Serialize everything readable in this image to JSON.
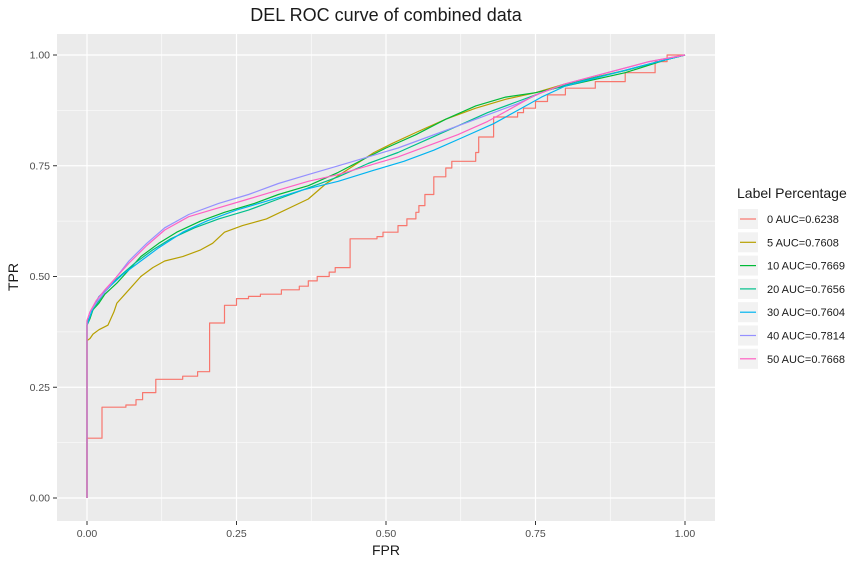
{
  "chart_data": {
    "type": "line",
    "title": "DEL ROC curve of combined data",
    "xlabel": "FPR",
    "ylabel": "TPR",
    "xlim": [
      0,
      1
    ],
    "ylim": [
      0,
      1
    ],
    "x_ticks": [
      "0.00",
      "0.25",
      "0.50",
      "0.75",
      "1.00"
    ],
    "y_ticks": [
      "0.00",
      "0.25",
      "0.50",
      "0.75",
      "1.00"
    ],
    "grid": true,
    "legend": {
      "title": "Label Percentage",
      "position": "right"
    },
    "series": [
      {
        "name": "0 AUC=0.6238",
        "color": "#F8766D",
        "points": [
          [
            0,
            0
          ],
          [
            0,
            0.135
          ],
          [
            0.025,
            0.135
          ],
          [
            0.025,
            0.205
          ],
          [
            0.065,
            0.205
          ],
          [
            0.065,
            0.21
          ],
          [
            0.082,
            0.21
          ],
          [
            0.082,
            0.222
          ],
          [
            0.093,
            0.222
          ],
          [
            0.093,
            0.238
          ],
          [
            0.115,
            0.238
          ],
          [
            0.115,
            0.268
          ],
          [
            0.16,
            0.268
          ],
          [
            0.16,
            0.275
          ],
          [
            0.185,
            0.275
          ],
          [
            0.185,
            0.285
          ],
          [
            0.205,
            0.285
          ],
          [
            0.205,
            0.395
          ],
          [
            0.23,
            0.395
          ],
          [
            0.23,
            0.435
          ],
          [
            0.25,
            0.435
          ],
          [
            0.25,
            0.45
          ],
          [
            0.27,
            0.45
          ],
          [
            0.27,
            0.455
          ],
          [
            0.29,
            0.455
          ],
          [
            0.29,
            0.46
          ],
          [
            0.325,
            0.46
          ],
          [
            0.325,
            0.47
          ],
          [
            0.355,
            0.47
          ],
          [
            0.355,
            0.478
          ],
          [
            0.37,
            0.478
          ],
          [
            0.37,
            0.49
          ],
          [
            0.385,
            0.49
          ],
          [
            0.385,
            0.5
          ],
          [
            0.405,
            0.5
          ],
          [
            0.405,
            0.51
          ],
          [
            0.415,
            0.51
          ],
          [
            0.415,
            0.52
          ],
          [
            0.44,
            0.52
          ],
          [
            0.44,
            0.585
          ],
          [
            0.485,
            0.585
          ],
          [
            0.485,
            0.59
          ],
          [
            0.495,
            0.59
          ],
          [
            0.495,
            0.6
          ],
          [
            0.52,
            0.6
          ],
          [
            0.52,
            0.615
          ],
          [
            0.535,
            0.615
          ],
          [
            0.535,
            0.63
          ],
          [
            0.55,
            0.63
          ],
          [
            0.55,
            0.645
          ],
          [
            0.555,
            0.645
          ],
          [
            0.555,
            0.66
          ],
          [
            0.565,
            0.66
          ],
          [
            0.565,
            0.685
          ],
          [
            0.58,
            0.685
          ],
          [
            0.58,
            0.725
          ],
          [
            0.6,
            0.725
          ],
          [
            0.6,
            0.745
          ],
          [
            0.61,
            0.745
          ],
          [
            0.61,
            0.76
          ],
          [
            0.65,
            0.76
          ],
          [
            0.65,
            0.78
          ],
          [
            0.655,
            0.78
          ],
          [
            0.655,
            0.815
          ],
          [
            0.68,
            0.815
          ],
          [
            0.68,
            0.86
          ],
          [
            0.72,
            0.86
          ],
          [
            0.72,
            0.87
          ],
          [
            0.73,
            0.87
          ],
          [
            0.73,
            0.88
          ],
          [
            0.75,
            0.88
          ],
          [
            0.75,
            0.895
          ],
          [
            0.77,
            0.895
          ],
          [
            0.77,
            0.91
          ],
          [
            0.8,
            0.91
          ],
          [
            0.8,
            0.925
          ],
          [
            0.85,
            0.925
          ],
          [
            0.85,
            0.94
          ],
          [
            0.9,
            0.94
          ],
          [
            0.9,
            0.96
          ],
          [
            0.95,
            0.96
          ],
          [
            0.95,
            0.985
          ],
          [
            0.97,
            0.985
          ],
          [
            0.97,
            1
          ],
          [
            1,
            1
          ]
        ]
      },
      {
        "name": "5 AUC=0.7608",
        "color": "#B79F00",
        "points": [
          [
            0,
            0
          ],
          [
            0,
            0.355
          ],
          [
            0.005,
            0.36
          ],
          [
            0.01,
            0.37
          ],
          [
            0.02,
            0.38
          ],
          [
            0.035,
            0.39
          ],
          [
            0.045,
            0.42
          ],
          [
            0.05,
            0.44
          ],
          [
            0.07,
            0.47
          ],
          [
            0.09,
            0.5
          ],
          [
            0.11,
            0.52
          ],
          [
            0.13,
            0.535
          ],
          [
            0.16,
            0.545
          ],
          [
            0.19,
            0.56
          ],
          [
            0.21,
            0.575
          ],
          [
            0.23,
            0.6
          ],
          [
            0.26,
            0.615
          ],
          [
            0.3,
            0.63
          ],
          [
            0.37,
            0.675
          ],
          [
            0.4,
            0.71
          ],
          [
            0.44,
            0.745
          ],
          [
            0.48,
            0.78
          ],
          [
            0.51,
            0.8
          ],
          [
            0.55,
            0.825
          ],
          [
            0.6,
            0.855
          ],
          [
            0.65,
            0.88
          ],
          [
            0.7,
            0.9
          ],
          [
            0.75,
            0.915
          ],
          [
            0.8,
            0.935
          ],
          [
            0.9,
            0.965
          ],
          [
            0.97,
            0.99
          ],
          [
            1,
            1
          ]
        ]
      },
      {
        "name": "10 AUC=0.7669",
        "color": "#00BA38",
        "points": [
          [
            0,
            0
          ],
          [
            0,
            0.39
          ],
          [
            0.005,
            0.405
          ],
          [
            0.01,
            0.425
          ],
          [
            0.02,
            0.44
          ],
          [
            0.03,
            0.46
          ],
          [
            0.05,
            0.485
          ],
          [
            0.07,
            0.515
          ],
          [
            0.09,
            0.545
          ],
          [
            0.12,
            0.575
          ],
          [
            0.15,
            0.6
          ],
          [
            0.19,
            0.625
          ],
          [
            0.23,
            0.645
          ],
          [
            0.28,
            0.665
          ],
          [
            0.32,
            0.685
          ],
          [
            0.37,
            0.705
          ],
          [
            0.42,
            0.735
          ],
          [
            0.47,
            0.77
          ],
          [
            0.5,
            0.79
          ],
          [
            0.55,
            0.82
          ],
          [
            0.6,
            0.855
          ],
          [
            0.65,
            0.885
          ],
          [
            0.7,
            0.905
          ],
          [
            0.75,
            0.915
          ],
          [
            0.8,
            0.93
          ],
          [
            0.9,
            0.96
          ],
          [
            0.97,
            0.99
          ],
          [
            1,
            1
          ]
        ]
      },
      {
        "name": "20 AUC=0.7656",
        "color": "#00C08B",
        "points": [
          [
            0,
            0
          ],
          [
            0,
            0.395
          ],
          [
            0.005,
            0.41
          ],
          [
            0.01,
            0.425
          ],
          [
            0.02,
            0.445
          ],
          [
            0.03,
            0.465
          ],
          [
            0.05,
            0.495
          ],
          [
            0.08,
            0.53
          ],
          [
            0.11,
            0.56
          ],
          [
            0.14,
            0.585
          ],
          [
            0.18,
            0.61
          ],
          [
            0.22,
            0.63
          ],
          [
            0.27,
            0.65
          ],
          [
            0.32,
            0.675
          ],
          [
            0.37,
            0.7
          ],
          [
            0.42,
            0.725
          ],
          [
            0.47,
            0.755
          ],
          [
            0.52,
            0.78
          ],
          [
            0.57,
            0.81
          ],
          [
            0.62,
            0.84
          ],
          [
            0.67,
            0.87
          ],
          [
            0.72,
            0.895
          ],
          [
            0.77,
            0.92
          ],
          [
            0.82,
            0.94
          ],
          [
            0.9,
            0.965
          ],
          [
            0.97,
            0.99
          ],
          [
            1,
            1
          ]
        ]
      },
      {
        "name": "30 AUC=0.7604",
        "color": "#00B4F0",
        "points": [
          [
            0,
            0
          ],
          [
            0,
            0.39
          ],
          [
            0.005,
            0.41
          ],
          [
            0.01,
            0.43
          ],
          [
            0.02,
            0.455
          ],
          [
            0.04,
            0.48
          ],
          [
            0.06,
            0.505
          ],
          [
            0.09,
            0.535
          ],
          [
            0.12,
            0.565
          ],
          [
            0.16,
            0.6
          ],
          [
            0.2,
            0.625
          ],
          [
            0.25,
            0.65
          ],
          [
            0.3,
            0.67
          ],
          [
            0.36,
            0.695
          ],
          [
            0.42,
            0.715
          ],
          [
            0.48,
            0.74
          ],
          [
            0.53,
            0.76
          ],
          [
            0.58,
            0.785
          ],
          [
            0.63,
            0.815
          ],
          [
            0.68,
            0.845
          ],
          [
            0.72,
            0.875
          ],
          [
            0.76,
            0.905
          ],
          [
            0.8,
            0.93
          ],
          [
            0.87,
            0.955
          ],
          [
            0.94,
            0.98
          ],
          [
            1,
            1
          ]
        ]
      },
      {
        "name": "40 AUC=0.7814",
        "color": "#9590FF",
        "points": [
          [
            0,
            0
          ],
          [
            0,
            0.4
          ],
          [
            0.005,
            0.42
          ],
          [
            0.015,
            0.44
          ],
          [
            0.03,
            0.465
          ],
          [
            0.05,
            0.5
          ],
          [
            0.07,
            0.535
          ],
          [
            0.1,
            0.575
          ],
          [
            0.13,
            0.61
          ],
          [
            0.17,
            0.64
          ],
          [
            0.22,
            0.665
          ],
          [
            0.27,
            0.685
          ],
          [
            0.32,
            0.71
          ],
          [
            0.37,
            0.73
          ],
          [
            0.42,
            0.75
          ],
          [
            0.47,
            0.77
          ],
          [
            0.52,
            0.79
          ],
          [
            0.57,
            0.815
          ],
          [
            0.62,
            0.84
          ],
          [
            0.67,
            0.865
          ],
          [
            0.72,
            0.89
          ],
          [
            0.76,
            0.915
          ],
          [
            0.8,
            0.935
          ],
          [
            0.87,
            0.96
          ],
          [
            0.94,
            0.985
          ],
          [
            1,
            1
          ]
        ]
      },
      {
        "name": "50 AUC=0.7668",
        "color": "#FF61C3",
        "points": [
          [
            0,
            0
          ],
          [
            0,
            0.4
          ],
          [
            0.005,
            0.42
          ],
          [
            0.015,
            0.445
          ],
          [
            0.03,
            0.47
          ],
          [
            0.05,
            0.5
          ],
          [
            0.07,
            0.53
          ],
          [
            0.1,
            0.57
          ],
          [
            0.13,
            0.605
          ],
          [
            0.17,
            0.635
          ],
          [
            0.22,
            0.655
          ],
          [
            0.27,
            0.675
          ],
          [
            0.32,
            0.695
          ],
          [
            0.37,
            0.715
          ],
          [
            0.42,
            0.73
          ],
          [
            0.47,
            0.75
          ],
          [
            0.52,
            0.77
          ],
          [
            0.57,
            0.795
          ],
          [
            0.62,
            0.82
          ],
          [
            0.67,
            0.85
          ],
          [
            0.71,
            0.88
          ],
          [
            0.75,
            0.91
          ],
          [
            0.8,
            0.935
          ],
          [
            0.87,
            0.96
          ],
          [
            0.94,
            0.985
          ],
          [
            1,
            1
          ]
        ]
      }
    ]
  }
}
